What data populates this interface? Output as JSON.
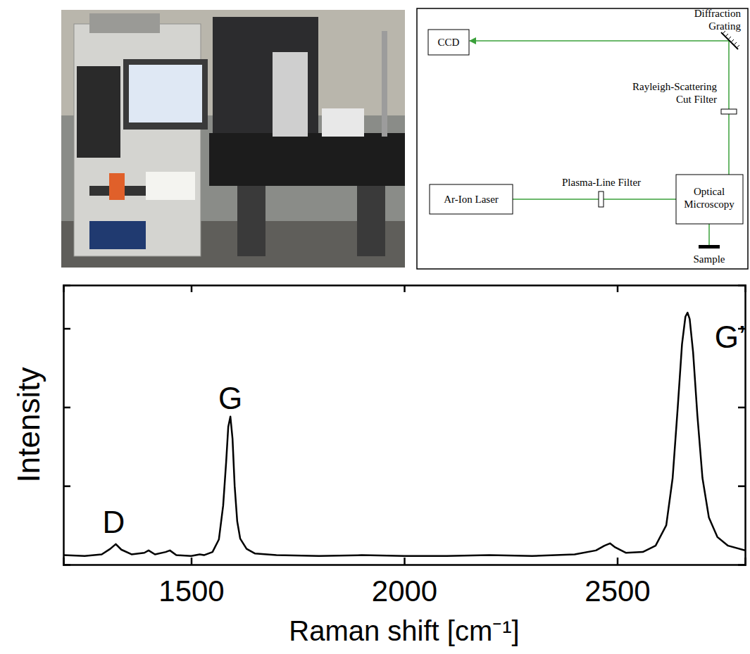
{
  "chart_data": {
    "type": "line",
    "x_label": "Raman shift [cm⁻¹]",
    "y_label": "Intensity",
    "color": "#000000",
    "x": [
      1200,
      1250,
      1290,
      1310,
      1323,
      1336,
      1360,
      1390,
      1400,
      1415,
      1440,
      1450,
      1465,
      1500,
      1520,
      1530,
      1550,
      1565,
      1575,
      1582,
      1587,
      1592,
      1597,
      1602,
      1608,
      1615,
      1630,
      1650,
      1700,
      1800,
      1900,
      2000,
      2100,
      2200,
      2300,
      2400,
      2450,
      2470,
      2483,
      2495,
      2520,
      2560,
      2590,
      2615,
      2630,
      2642,
      2652,
      2660,
      2665,
      2670,
      2678,
      2688,
      2700,
      2715,
      2735,
      2760,
      2800
    ],
    "values": [
      0.12,
      0.11,
      0.13,
      0.2,
      0.26,
      0.19,
      0.13,
      0.15,
      0.18,
      0.13,
      0.16,
      0.18,
      0.12,
      0.11,
      0.13,
      0.12,
      0.16,
      0.32,
      0.75,
      1.3,
      1.75,
      1.88,
      1.6,
      1.0,
      0.55,
      0.33,
      0.2,
      0.14,
      0.12,
      0.11,
      0.12,
      0.11,
      0.11,
      0.12,
      0.11,
      0.13,
      0.18,
      0.24,
      0.27,
      0.22,
      0.15,
      0.16,
      0.24,
      0.5,
      1.1,
      2.0,
      2.8,
      3.15,
      3.2,
      3.12,
      2.7,
      1.9,
      1.1,
      0.6,
      0.35,
      0.24,
      0.18
    ],
    "xlim": [
      1200,
      2800
    ],
    "xticks": [
      1500,
      2000,
      2500
    ],
    "ylim": [
      0,
      3.55
    ],
    "yticks": [
      1,
      2,
      3
    ],
    "tick_labels": "x",
    "annotations": [
      {
        "text": "D",
        "x": 1318,
        "y": 0.4
      },
      {
        "text": "G",
        "x": 1592,
        "y": 1.98
      },
      {
        "text": "G’",
        "x": 2765,
        "y": 2.75
      }
    ]
  },
  "diagram": {
    "nodes": [
      {
        "label": "CCD"
      },
      {
        "label": "Diffraction Grating"
      },
      {
        "label": "Rayleigh-Scattering Cut Filter"
      },
      {
        "label": "Plasma-Line Filter"
      },
      {
        "label": "Ar-Ion Laser"
      },
      {
        "label": "Optical Microscopy"
      },
      {
        "label": "Sample"
      }
    ]
  }
}
